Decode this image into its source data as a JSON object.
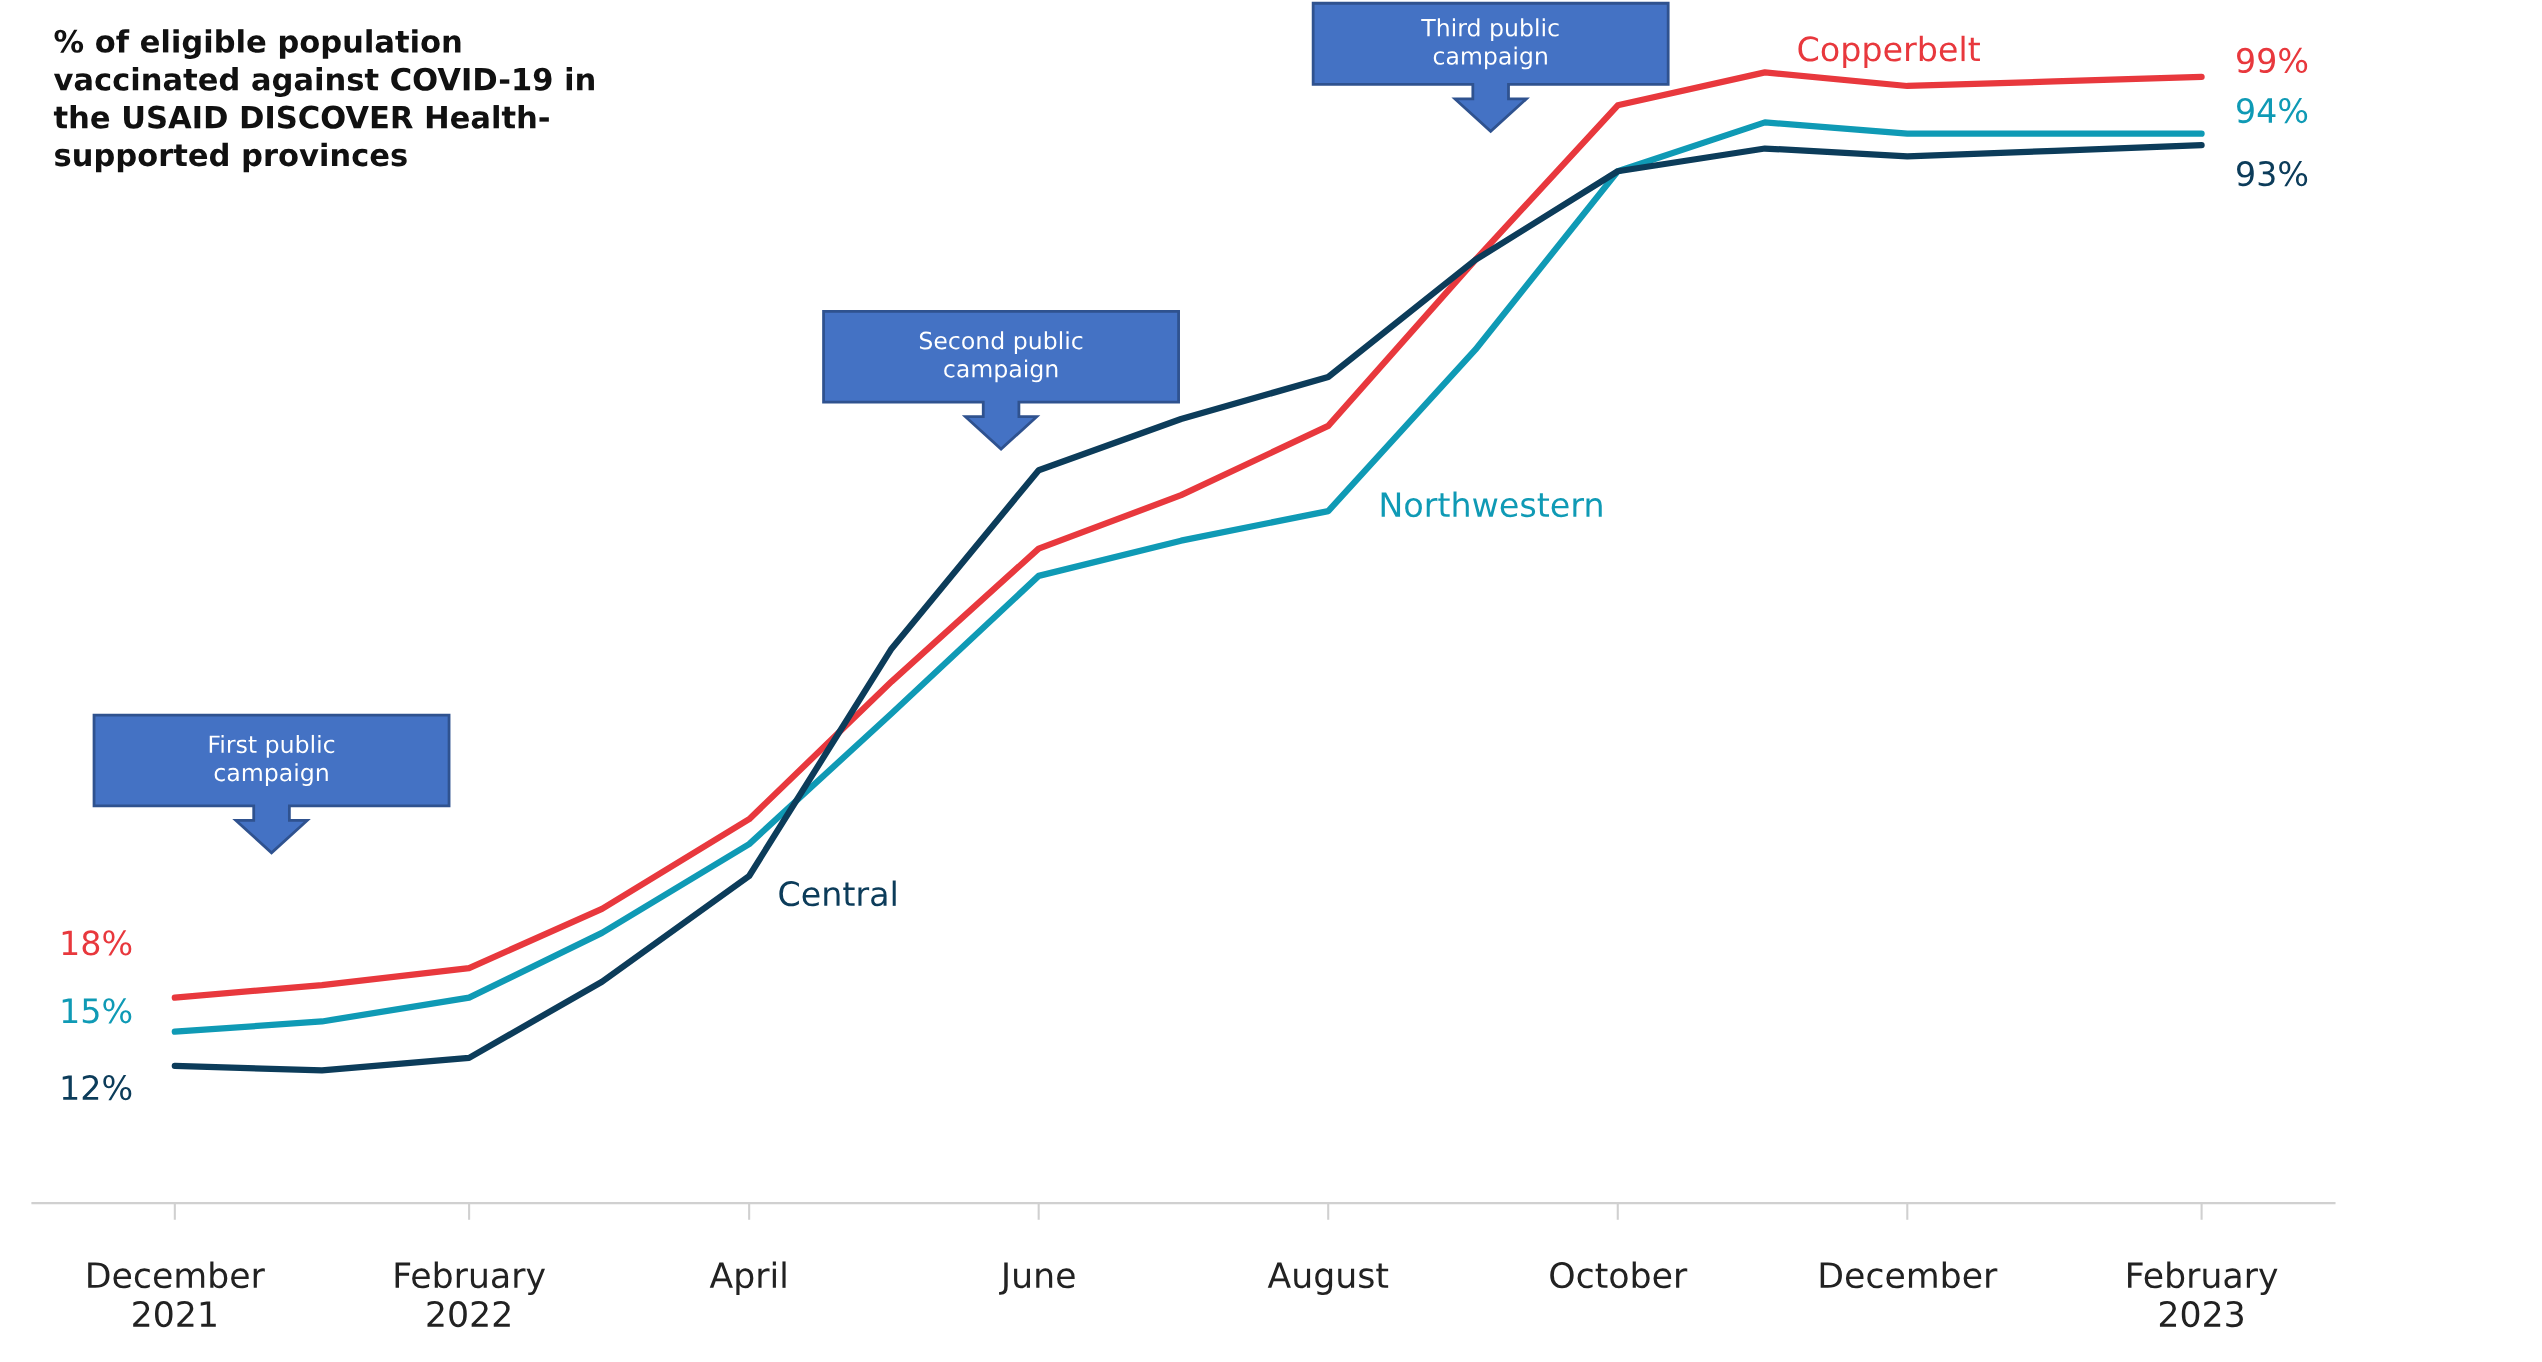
{
  "chart_data": {
    "type": "line",
    "title": "% of eligible population\nvaccinated against COVID-19 in\nthe USAID DISCOVER Health-\nsupported provinces",
    "x": [
      "2021-12",
      "2022-01",
      "2022-02",
      "2022-03",
      "2022-04",
      "2022-05",
      "2022-06",
      "2022-07",
      "2022-08",
      "2022-09",
      "2022-10",
      "2022-11",
      "2022-12",
      "2023-01",
      "2023-02"
    ],
    "xlim": [
      "2021-11",
      "2023-03"
    ],
    "xticks": [
      {
        "value": "2021-12",
        "label": "December\n2021"
      },
      {
        "value": "2022-02",
        "label": "February\n2022"
      },
      {
        "value": "2022-04",
        "label": "April"
      },
      {
        "value": "2022-06",
        "label": "June"
      },
      {
        "value": "2022-08",
        "label": "August"
      },
      {
        "value": "2022-10",
        "label": "October"
      },
      {
        "value": "2022-12",
        "label": "December"
      },
      {
        "value": "2023-02",
        "label": "February\n2023"
      }
    ],
    "tick_labels": "x",
    "grid": false,
    "legend": false,
    "line_style": "solid",
    "marker": "none",
    "series": [
      {
        "name": "Copperbelt",
        "color": "#e8383d",
        "values": [
          18,
          19.1,
          20.6,
          25.8,
          33.7,
          45.8,
          57.5,
          62.2,
          68.3,
          82.9,
          96.5,
          99.4,
          98.2,
          98.6,
          99
        ],
        "value_labels": [
          "18%",
          null,
          null,
          null,
          null,
          null,
          null,
          null,
          null,
          null,
          null,
          null,
          null,
          null,
          "99%"
        ]
      },
      {
        "name": "Northwestern",
        "color": "#0f9ab5",
        "values": [
          15,
          15.9,
          18,
          23.7,
          31.5,
          43,
          55.1,
          58.2,
          60.8,
          75,
          90.7,
          95,
          94,
          94,
          94
        ],
        "value_labels": [
          "15%",
          null,
          null,
          null,
          null,
          null,
          null,
          null,
          null,
          null,
          null,
          null,
          null,
          null,
          "94%"
        ]
      },
      {
        "name": "Central",
        "color": "#0c3c5a",
        "values": [
          12,
          11.6,
          12.7,
          19.4,
          28.7,
          48.7,
          64.4,
          68.9,
          72.6,
          82.9,
          90.7,
          92.7,
          92,
          92.5,
          93
        ],
        "value_labels": [
          "12%",
          null,
          null,
          null,
          null,
          null,
          null,
          null,
          null,
          null,
          null,
          null,
          null,
          null,
          "93%"
        ]
      }
    ],
    "annotations": [
      "First public\ncampaign",
      "Second public\ncampaign",
      "Third public\ncampaign"
    ]
  }
}
